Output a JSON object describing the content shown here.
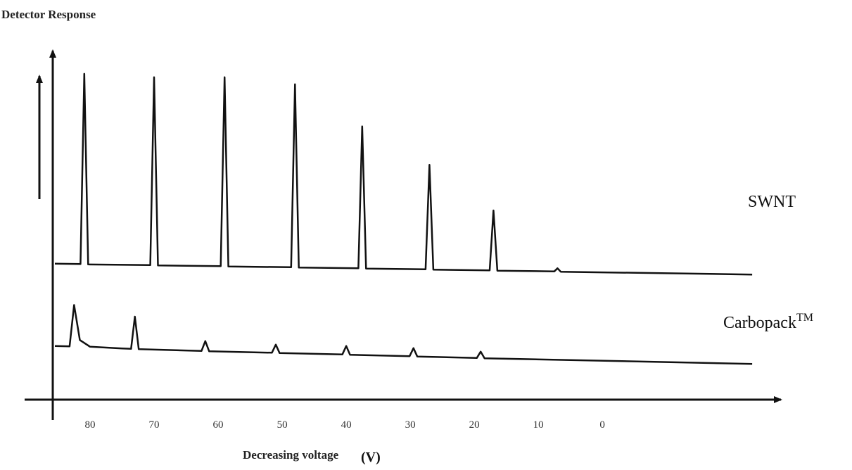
{
  "chart_data": {
    "type": "line",
    "title": "Detector Response",
    "x_label": "Decreasing voltage",
    "x_unit": "(V)",
    "xlim": [
      90,
      -28
    ],
    "ylim": [
      0,
      100
    ],
    "xticks": [
      80,
      70,
      60,
      50,
      40,
      30,
      20,
      10,
      0
    ],
    "series": [
      {
        "name": "SWNT",
        "color": "#111111",
        "x": [
          85.5,
          81.5,
          80.9,
          80.3,
          70.6,
          70,
          69.4,
          59.6,
          59,
          58.4,
          48.6,
          48,
          47.4,
          38.1,
          37.5,
          36.9,
          27.6,
          27,
          26.4,
          17.6,
          17,
          16.4,
          7.5,
          7,
          6.5,
          -23.4
        ],
        "values": [
          38.8,
          38.7,
          93,
          38.6,
          38.4,
          92,
          38.3,
          38.1,
          92,
          38.0,
          37.8,
          90,
          37.7,
          37.5,
          78,
          37.4,
          37.2,
          67,
          37.1,
          36.9,
          54,
          36.8,
          36.6,
          37.5,
          36.5,
          35.7
        ]
      },
      {
        "name": "Carbopack",
        "name_superscript": "TM",
        "color": "#111111",
        "x": [
          85.5,
          83.2,
          82.5,
          81.6,
          80,
          75,
          73.6,
          73,
          72.4,
          62.6,
          62,
          61.4,
          51.6,
          51,
          50.4,
          40.6,
          40,
          39.4,
          30.1,
          29.5,
          28.9,
          19.6,
          19,
          18.4,
          -23.4
        ],
        "values": [
          15.3,
          15.2,
          27,
          17,
          15.1,
          14.6,
          14.5,
          23.7,
          14.4,
          13.9,
          16.7,
          13.8,
          13.4,
          15.7,
          13.3,
          12.9,
          15.3,
          12.8,
          12.4,
          14.7,
          12.3,
          11.9,
          13.7,
          11.8,
          10.2
        ]
      }
    ]
  }
}
